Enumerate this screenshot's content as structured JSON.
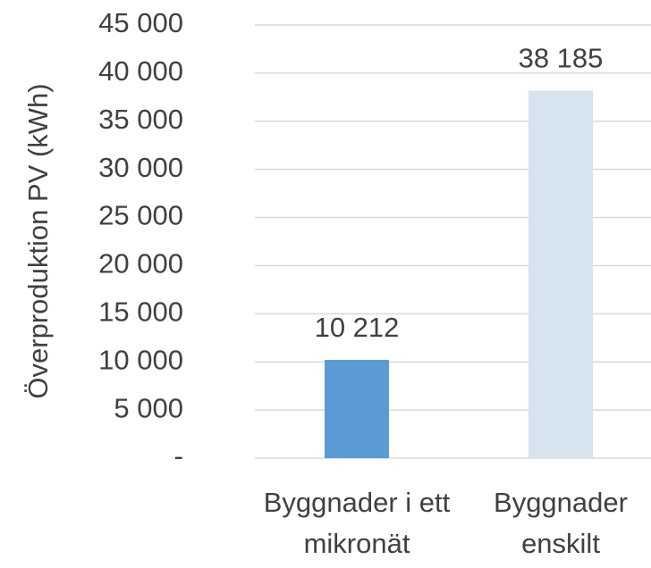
{
  "chart_data": {
    "type": "bar",
    "y_axis_label": "Överproduktion PV (kWh)",
    "categories": [
      "Byggnader i ett mikronät",
      "Byggnader enskilt"
    ],
    "values": [
      10212,
      38185
    ],
    "value_labels": [
      "10 212",
      "38 185"
    ],
    "colors": [
      "#5b9bd5",
      "#d6e4ef"
    ],
    "ylim": [
      0,
      45000
    ],
    "yticks": [
      {
        "value": 0,
        "label": "-"
      },
      {
        "value": 5000,
        "label": "5 000"
      },
      {
        "value": 10000,
        "label": "10 000"
      },
      {
        "value": 15000,
        "label": "15 000"
      },
      {
        "value": 20000,
        "label": "20 000"
      },
      {
        "value": 25000,
        "label": "25 000"
      },
      {
        "value": 30000,
        "label": "30 000"
      },
      {
        "value": 35000,
        "label": "35 000"
      },
      {
        "value": 40000,
        "label": "40 000"
      },
      {
        "value": 45000,
        "label": "45 000"
      }
    ],
    "grid": true
  }
}
